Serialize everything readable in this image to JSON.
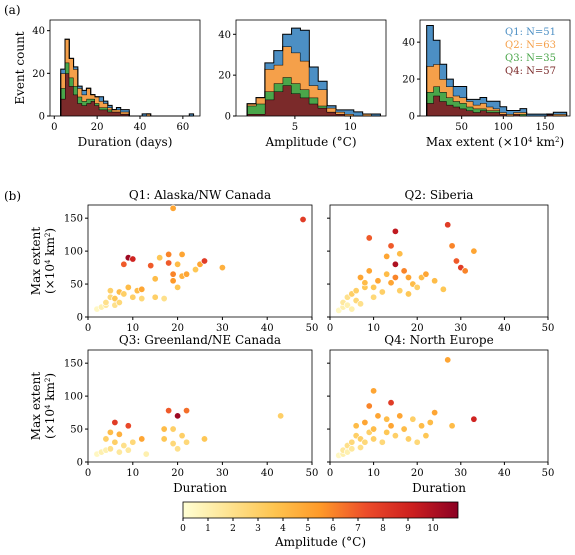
{
  "panel_labels": {
    "a": "(a)",
    "b": "(b)"
  },
  "colors": {
    "Q1": "#4c8fc4",
    "Q2": "#f5a04a",
    "Q3": "#4aa64a",
    "Q4": "#7b2a2a"
  },
  "colormap": [
    "#ffffd4",
    "#fee391",
    "#fec44f",
    "#fe9929",
    "#ec4c2a",
    "#cc1f1f",
    "#8b0023"
  ],
  "colorbar": {
    "label": "Amplitude (°C)",
    "ticks": [
      "0",
      "1",
      "2",
      "3",
      "4",
      "5",
      "6",
      "7",
      "8",
      "9",
      "10"
    ],
    "max": 11
  },
  "chart_data": [
    {
      "type": "bar",
      "stacked": true,
      "ylabel": "Event count",
      "xlabel": "Duration (days)",
      "xlim": [
        -2,
        68
      ],
      "ylim": [
        0,
        45
      ],
      "xticks": [
        0,
        20,
        40,
        60
      ],
      "yticks": [
        0,
        20,
        40
      ],
      "bin_edges": [
        3,
        5,
        7,
        9,
        11,
        13,
        15,
        17,
        19,
        21,
        23,
        25,
        27,
        29,
        31,
        33,
        35,
        37,
        39,
        41,
        43,
        45,
        47,
        49,
        51,
        53,
        55,
        57,
        59,
        61,
        63,
        65
      ],
      "series": [
        {
          "name": "Q4",
          "values": [
            8,
            20,
            14,
            10,
            6,
            5,
            6,
            7,
            5,
            3,
            3,
            2,
            2,
            2,
            1,
            1,
            0,
            0,
            0,
            0,
            0,
            0,
            0,
            0,
            0,
            0,
            0,
            0,
            0,
            0,
            0
          ]
        },
        {
          "name": "Q3",
          "values": [
            5,
            5,
            4,
            4,
            3,
            2,
            2,
            1,
            1,
            1,
            1,
            1,
            0,
            0,
            0,
            0,
            0,
            0,
            0,
            0,
            0,
            0,
            0,
            0,
            0,
            0,
            0,
            0,
            0,
            0,
            0
          ]
        },
        {
          "name": "Q2",
          "values": [
            7,
            11,
            9,
            8,
            4,
            3,
            5,
            2,
            3,
            3,
            2,
            1,
            1,
            1,
            1,
            1,
            0,
            0,
            0,
            0,
            1,
            0,
            0,
            0,
            0,
            0,
            0,
            0,
            0,
            0,
            0
          ]
        },
        {
          "name": "Q1",
          "values": [
            2,
            0,
            0,
            1,
            1,
            2,
            0,
            0,
            0,
            2,
            1,
            1,
            0,
            1,
            1,
            1,
            0,
            0,
            0,
            1,
            0,
            0,
            0,
            0,
            0,
            0,
            0,
            0,
            0,
            0,
            1
          ]
        }
      ]
    },
    {
      "type": "bar",
      "stacked": true,
      "xlabel": "Amplitude (°C)",
      "xlim": [
        -0.3,
        13.2
      ],
      "ylim": [
        0,
        47
      ],
      "xticks": [
        5,
        10
      ],
      "yticks": [
        0,
        20,
        40
      ],
      "bin_edges": [
        0.7,
        1.5,
        2.3,
        3.1,
        3.9,
        4.7,
        5.5,
        6.3,
        7.1,
        7.9,
        8.7,
        9.5,
        10.3,
        11.1,
        11.9,
        12.7
      ],
      "series": [
        {
          "name": "Q4",
          "values": [
            1,
            1,
            8,
            12,
            15,
            11,
            9,
            6,
            4,
            2,
            1,
            0,
            0,
            0,
            0
          ]
        },
        {
          "name": "Q3",
          "values": [
            4,
            5,
            4,
            4,
            4,
            5,
            4,
            3,
            1,
            0,
            0,
            0,
            0,
            0,
            0
          ]
        },
        {
          "name": "Q2",
          "values": [
            1,
            3,
            11,
            9,
            15,
            15,
            14,
            6,
            8,
            2,
            1,
            1,
            0,
            1,
            0
          ]
        },
        {
          "name": "Q1",
          "values": [
            0,
            0,
            3,
            7,
            6,
            12,
            15,
            9,
            4,
            1,
            1,
            2,
            2,
            0,
            1
          ]
        }
      ]
    },
    {
      "type": "bar",
      "stacked": true,
      "xlabel": "Max extent (×10⁴ km²)",
      "xlim": [
        0,
        180
      ],
      "ylim": [
        0,
        52
      ],
      "xticks": [
        50,
        100,
        150
      ],
      "yticks": [
        0,
        20,
        40
      ],
      "bin_edges": [
        8,
        16,
        24,
        32,
        40,
        48,
        56,
        64,
        72,
        80,
        88,
        96,
        104,
        112,
        120,
        128,
        136,
        144,
        152,
        160,
        168,
        176
      ],
      "series": [
        {
          "name": "Q4",
          "values": [
            7,
            11,
            8,
            6,
            5,
            4,
            3,
            2,
            3,
            2,
            2,
            1,
            0,
            1,
            0,
            0,
            0,
            0,
            1,
            0,
            0
          ]
        },
        {
          "name": "Q3",
          "values": [
            6,
            5,
            5,
            4,
            3,
            3,
            2,
            2,
            1,
            1,
            1,
            0,
            0,
            0,
            1,
            0,
            0,
            0,
            0,
            0,
            0
          ]
        },
        {
          "name": "Q2",
          "values": [
            14,
            12,
            7,
            6,
            3,
            3,
            3,
            2,
            3,
            2,
            1,
            1,
            1,
            1,
            1,
            0,
            0,
            0,
            0,
            1,
            1
          ]
        },
        {
          "name": "Q1",
          "values": [
            22,
            13,
            8,
            4,
            5,
            6,
            1,
            3,
            3,
            3,
            4,
            3,
            2,
            1,
            2,
            1,
            1,
            1,
            0,
            1,
            1
          ]
        }
      ]
    },
    {
      "type": "scatter",
      "title": "Q1: Alaska/NW Canada",
      "ylabel": "Max extent",
      "ylabel_unit": "(×10⁴ km²)",
      "xlim": [
        0,
        50
      ],
      "ylim": [
        0,
        170
      ],
      "xticks": [
        0,
        10,
        20,
        30,
        40,
        50
      ],
      "yticks": [
        0,
        50,
        100,
        150
      ],
      "points": [
        [
          2,
          12,
          0.5
        ],
        [
          3,
          15,
          1
        ],
        [
          4,
          18,
          1.5
        ],
        [
          4,
          22,
          2
        ],
        [
          5,
          30,
          2.5
        ],
        [
          5,
          40,
          3
        ],
        [
          6,
          18,
          2
        ],
        [
          6,
          28,
          3.5
        ],
        [
          7,
          38,
          4
        ],
        [
          7,
          22,
          2.5
        ],
        [
          8,
          80,
          7
        ],
        [
          8,
          35,
          3
        ],
        [
          9,
          90,
          10.5
        ],
        [
          9,
          45,
          4
        ],
        [
          10,
          88,
          9
        ],
        [
          10,
          30,
          3
        ],
        [
          11,
          40,
          4
        ],
        [
          12,
          28,
          2.5
        ],
        [
          12,
          42,
          5
        ],
        [
          14,
          78,
          7
        ],
        [
          15,
          58,
          4
        ],
        [
          15,
          30,
          3
        ],
        [
          16,
          90,
          3.5
        ],
        [
          17,
          28,
          2
        ],
        [
          18,
          95,
          6
        ],
        [
          18,
          82,
          7
        ],
        [
          19,
          165,
          5
        ],
        [
          19,
          55,
          5.5
        ],
        [
          19,
          65,
          6
        ],
        [
          20,
          80,
          4
        ],
        [
          20,
          45,
          3.5
        ],
        [
          21,
          95,
          5
        ],
        [
          21,
          62,
          4.5
        ],
        [
          22,
          65,
          5
        ],
        [
          24,
          72,
          3.5
        ],
        [
          25,
          80,
          5
        ],
        [
          26,
          85,
          8
        ],
        [
          30,
          75,
          4.5
        ],
        [
          48,
          148,
          8
        ]
      ]
    },
    {
      "type": "scatter",
      "title": "Q2: Siberia",
      "xlim": [
        0,
        50
      ],
      "ylim": [
        0,
        170
      ],
      "xticks": [
        0,
        10,
        20,
        30,
        40,
        50
      ],
      "yticks": [
        0,
        50,
        100,
        150
      ],
      "points": [
        [
          2,
          10,
          0.5
        ],
        [
          3,
          15,
          1
        ],
        [
          3,
          22,
          1.5
        ],
        [
          4,
          18,
          1
        ],
        [
          4,
          30,
          2
        ],
        [
          5,
          12,
          1
        ],
        [
          5,
          35,
          3
        ],
        [
          6,
          25,
          2.5
        ],
        [
          6,
          40,
          3
        ],
        [
          7,
          60,
          5
        ],
        [
          7,
          20,
          2
        ],
        [
          8,
          45,
          3.5
        ],
        [
          8,
          52,
          4
        ],
        [
          9,
          70,
          5
        ],
        [
          9,
          120,
          7
        ],
        [
          10,
          45,
          3.5
        ],
        [
          10,
          30,
          2.5
        ],
        [
          11,
          55,
          5
        ],
        [
          12,
          38,
          3
        ],
        [
          13,
          92,
          5
        ],
        [
          13,
          65,
          4
        ],
        [
          14,
          108,
          7
        ],
        [
          14,
          52,
          5
        ],
        [
          15,
          130,
          9.5
        ],
        [
          15,
          80,
          10
        ],
        [
          15,
          60,
          6
        ],
        [
          16,
          40,
          3
        ],
        [
          16,
          96,
          4
        ],
        [
          17,
          70,
          6
        ],
        [
          18,
          60,
          5
        ],
        [
          18,
          35,
          3.5
        ],
        [
          19,
          50,
          4
        ],
        [
          20,
          45,
          3
        ],
        [
          21,
          60,
          4
        ],
        [
          22,
          65,
          5
        ],
        [
          24,
          55,
          4
        ],
        [
          26,
          42,
          3.5
        ],
        [
          27,
          140,
          8
        ],
        [
          28,
          108,
          6
        ],
        [
          29,
          85,
          7
        ],
        [
          30,
          75,
          8
        ],
        [
          31,
          70,
          6
        ],
        [
          33,
          100,
          5
        ]
      ]
    },
    {
      "type": "scatter",
      "title": "Q3: Greenland/NE Canada",
      "ylabel": "Max extent",
      "ylabel_unit": "(×10⁴ km²)",
      "xlabel": "Duration",
      "xlim": [
        0,
        50
      ],
      "ylim": [
        0,
        170
      ],
      "xticks": [
        0,
        10,
        20,
        30,
        40,
        50
      ],
      "yticks": [
        0,
        50,
        100,
        150
      ],
      "points": [
        [
          2,
          12,
          0.5
        ],
        [
          3,
          15,
          1
        ],
        [
          4,
          18,
          1
        ],
        [
          4,
          35,
          3
        ],
        [
          5,
          20,
          2
        ],
        [
          5,
          45,
          4
        ],
        [
          6,
          30,
          3
        ],
        [
          6,
          60,
          8
        ],
        [
          7,
          42,
          4.5
        ],
        [
          7,
          15,
          1.5
        ],
        [
          8,
          25,
          2
        ],
        [
          9,
          55,
          7.5
        ],
        [
          9,
          18,
          1.5
        ],
        [
          10,
          30,
          2.5
        ],
        [
          12,
          35,
          5
        ],
        [
          13,
          12,
          1
        ],
        [
          17,
          50,
          4
        ],
        [
          17,
          35,
          3.5
        ],
        [
          18,
          78,
          7
        ],
        [
          19,
          50,
          3
        ],
        [
          19,
          28,
          2.5
        ],
        [
          20,
          70,
          10.5
        ],
        [
          20,
          20,
          2
        ],
        [
          21,
          40,
          3
        ],
        [
          22,
          78,
          6.5
        ],
        [
          22,
          30,
          2.5
        ],
        [
          26,
          35,
          3.5
        ],
        [
          43,
          70,
          3
        ]
      ]
    },
    {
      "type": "scatter",
      "title": "Q4: North Europe",
      "xlabel": "Duration",
      "xlim": [
        0,
        50
      ],
      "ylim": [
        0,
        170
      ],
      "xticks": [
        0,
        10,
        20,
        30,
        40,
        50
      ],
      "yticks": [
        0,
        50,
        100,
        150
      ],
      "points": [
        [
          2,
          10,
          0.5
        ],
        [
          3,
          12,
          1
        ],
        [
          3,
          18,
          1.5
        ],
        [
          4,
          15,
          1
        ],
        [
          4,
          25,
          2
        ],
        [
          5,
          20,
          1.5
        ],
        [
          5,
          30,
          2.5
        ],
        [
          6,
          40,
          3
        ],
        [
          6,
          55,
          4
        ],
        [
          7,
          35,
          3
        ],
        [
          7,
          22,
          2
        ],
        [
          8,
          60,
          5
        ],
        [
          8,
          30,
          2.5
        ],
        [
          9,
          45,
          3
        ],
        [
          9,
          85,
          6
        ],
        [
          10,
          108,
          5
        ],
        [
          10,
          50,
          4
        ],
        [
          10,
          35,
          3
        ],
        [
          11,
          70,
          5
        ],
        [
          12,
          30,
          2.5
        ],
        [
          13,
          65,
          4
        ],
        [
          13,
          45,
          3.5
        ],
        [
          14,
          90,
          8
        ],
        [
          14,
          55,
          5
        ],
        [
          15,
          40,
          3
        ],
        [
          16,
          70,
          5
        ],
        [
          17,
          50,
          4
        ],
        [
          18,
          35,
          3
        ],
        [
          19,
          65,
          3
        ],
        [
          20,
          30,
          2.5
        ],
        [
          21,
          55,
          4
        ],
        [
          22,
          40,
          3.5
        ],
        [
          23,
          60,
          4
        ],
        [
          24,
          75,
          5
        ],
        [
          27,
          155,
          5
        ],
        [
          28,
          55,
          4
        ],
        [
          33,
          65,
          9
        ]
      ]
    }
  ]
}
